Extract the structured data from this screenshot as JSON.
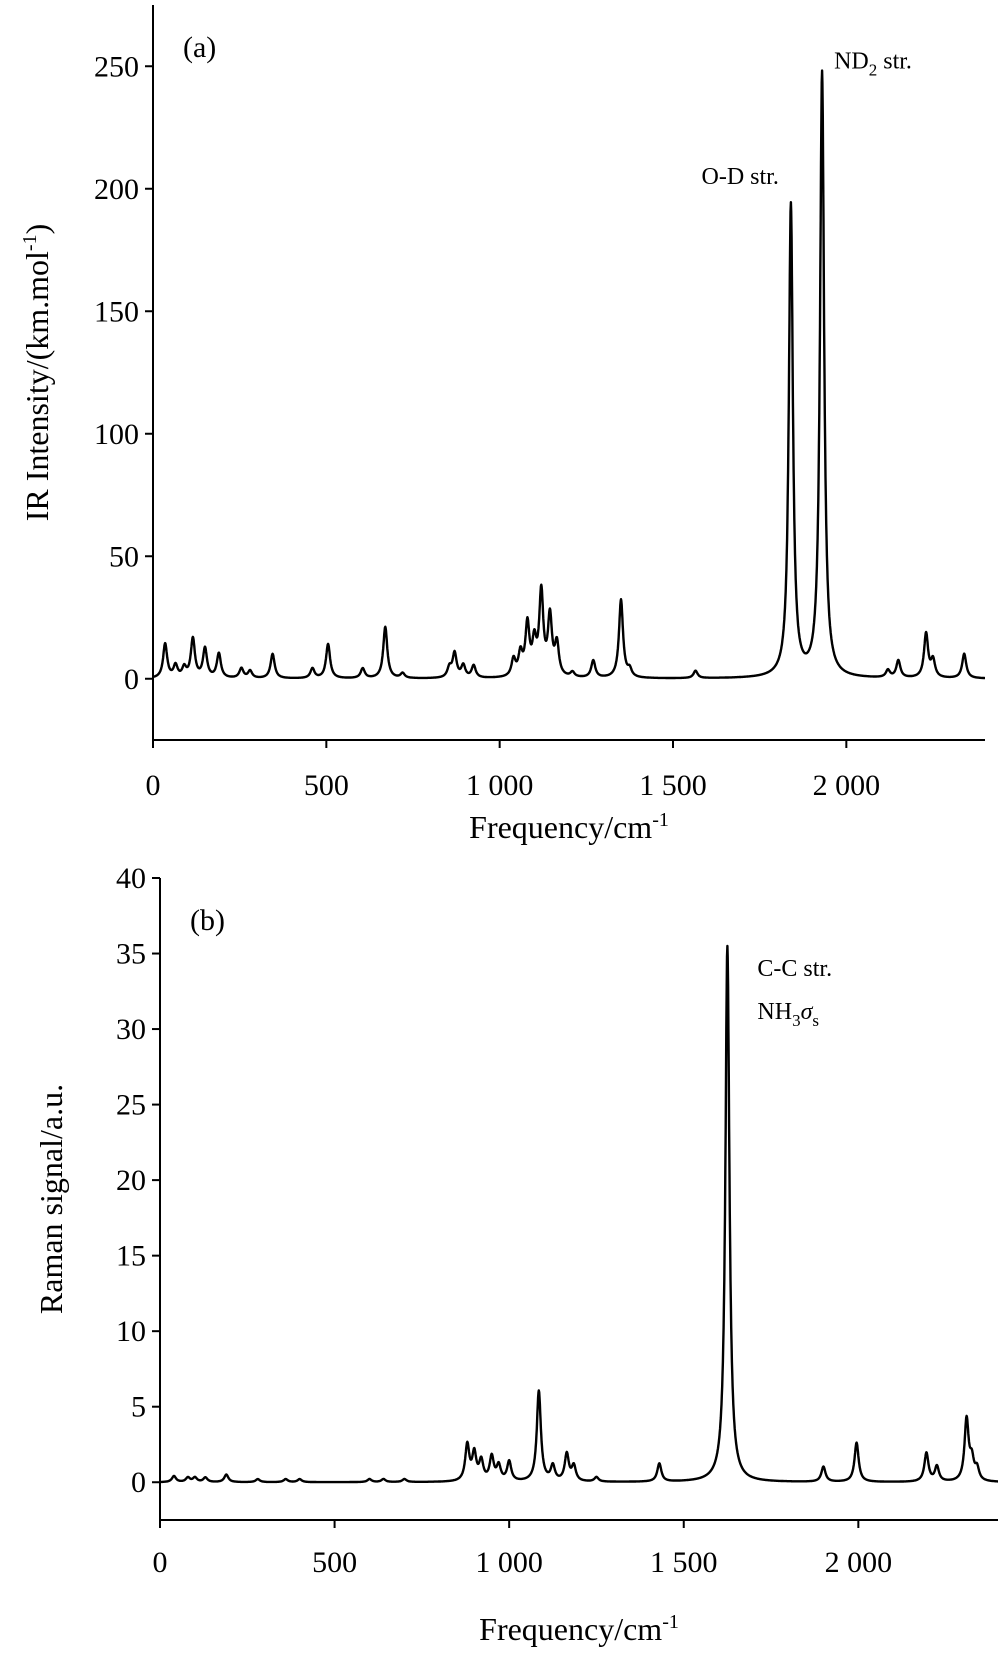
{
  "chart_data": [
    {
      "type": "line",
      "panel_label": "(a)",
      "xlabel": "Frequency/cm",
      "xlabel_sup": "-1",
      "ylabel": "IR Intensity/(km.mol",
      "ylabel_sup": "-1",
      "ylabel_end": ")",
      "xlim": [
        0,
        2400
      ],
      "ylim": [
        -25,
        275
      ],
      "xticks": [
        0,
        500,
        1000,
        1500,
        2000
      ],
      "xtick_labels": [
        "0",
        "500",
        "1 000",
        "1 500",
        "2 000"
      ],
      "yticks": [
        0,
        50,
        100,
        150,
        200,
        250
      ],
      "ytick_labels": [
        "0",
        "50",
        "100",
        "150",
        "200",
        "250"
      ],
      "grid": false,
      "line_color": "#000000",
      "annotations": [
        {
          "text": "O-D str.",
          "x": 1840,
          "y": 193
        },
        {
          "text": "ND",
          "sub": "2",
          "tail": " str.",
          "x": 1930,
          "y": 247
        }
      ],
      "peaks": [
        [
          35,
          14
        ],
        [
          65,
          5
        ],
        [
          90,
          4
        ],
        [
          115,
          16
        ],
        [
          150,
          12
        ],
        [
          190,
          10
        ],
        [
          255,
          4
        ],
        [
          280,
          3
        ],
        [
          345,
          10
        ],
        [
          460,
          4
        ],
        [
          505,
          14
        ],
        [
          605,
          4
        ],
        [
          670,
          21
        ],
        [
          720,
          2
        ],
        [
          855,
          4
        ],
        [
          870,
          10
        ],
        [
          895,
          5
        ],
        [
          925,
          5
        ],
        [
          1040,
          7
        ],
        [
          1060,
          9
        ],
        [
          1080,
          21
        ],
        [
          1100,
          13
        ],
        [
          1120,
          34
        ],
        [
          1145,
          24
        ],
        [
          1165,
          13
        ],
        [
          1210,
          2
        ],
        [
          1270,
          7
        ],
        [
          1350,
          32
        ],
        [
          1375,
          3
        ],
        [
          1565,
          3
        ],
        [
          1840,
          193
        ],
        [
          1930,
          247
        ],
        [
          2120,
          3
        ],
        [
          2150,
          7
        ],
        [
          2230,
          18
        ],
        [
          2250,
          7
        ],
        [
          2340,
          10
        ]
      ]
    },
    {
      "type": "line",
      "panel_label": "(b)",
      "xlabel": "Frequency/cm",
      "xlabel_sup": "-1",
      "ylabel": "Raman signal/a.u.",
      "xlim": [
        0,
        2400
      ],
      "ylim": [
        -2.5,
        40
      ],
      "xticks": [
        0,
        500,
        1000,
        1500,
        2000
      ],
      "xtick_labels": [
        "0",
        "500",
        "1 000",
        "1 500",
        "2 000"
      ],
      "yticks": [
        0,
        5,
        10,
        15,
        20,
        25,
        30,
        35,
        40
      ],
      "ytick_labels": [
        "0",
        "5",
        "10",
        "15",
        "20",
        "25",
        "30",
        "35",
        "40"
      ],
      "grid": false,
      "line_color": "#000000",
      "annotations": [
        {
          "text": "C-C str.",
          "x": 1625,
          "y": 35.5
        },
        {
          "text": "NH",
          "sub": "3",
          "sigma": "σ",
          "sigma_sub": "s",
          "x": 1625,
          "y": 32
        }
      ],
      "peaks": [
        [
          40,
          0.4
        ],
        [
          80,
          0.3
        ],
        [
          100,
          0.3
        ],
        [
          130,
          0.3
        ],
        [
          190,
          0.5
        ],
        [
          280,
          0.2
        ],
        [
          360,
          0.2
        ],
        [
          400,
          0.2
        ],
        [
          600,
          0.2
        ],
        [
          640,
          0.2
        ],
        [
          700,
          0.2
        ],
        [
          880,
          2.4
        ],
        [
          900,
          1.8
        ],
        [
          920,
          1.3
        ],
        [
          950,
          1.6
        ],
        [
          970,
          1.0
        ],
        [
          1000,
          1.3
        ],
        [
          1085,
          6.0
        ],
        [
          1125,
          1.0
        ],
        [
          1165,
          1.8
        ],
        [
          1185,
          1.0
        ],
        [
          1250,
          0.3
        ],
        [
          1430,
          1.2
        ],
        [
          1625,
          35.5
        ],
        [
          1900,
          1.0
        ],
        [
          1995,
          2.6
        ],
        [
          2195,
          1.9
        ],
        [
          2225,
          1.0
        ],
        [
          2310,
          4.1
        ],
        [
          2325,
          1.3
        ],
        [
          2340,
          0.8
        ]
      ]
    }
  ]
}
